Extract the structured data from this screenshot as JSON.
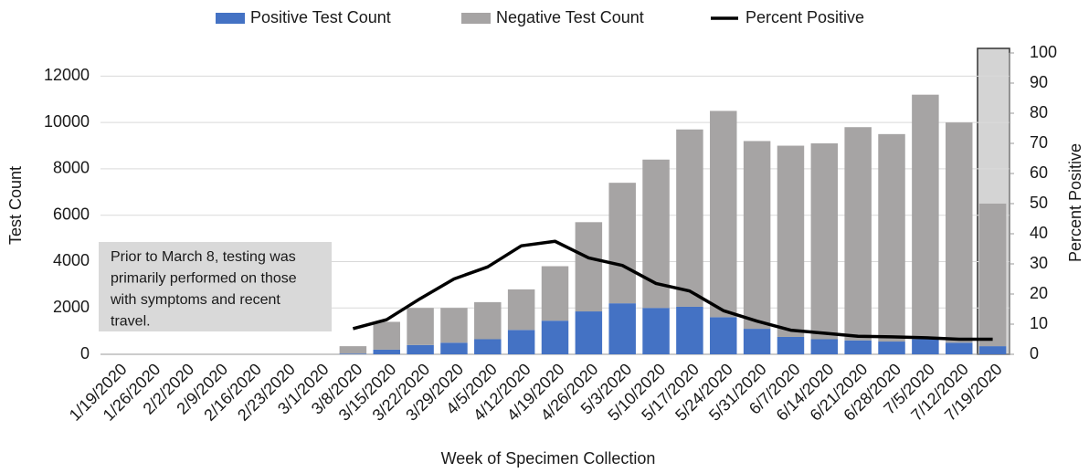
{
  "chart_data": {
    "type": "bar",
    "stacked": true,
    "x_label": "Week of Specimen Collection",
    "y_label": "Test Count",
    "y2_label": "Percent Positive",
    "categories": [
      "1/19/2020",
      "1/26/2020",
      "2/2/2020",
      "2/9/2020",
      "2/16/2020",
      "2/23/2020",
      "3/1/2020",
      "3/8/2020",
      "3/15/2020",
      "3/22/2020",
      "3/29/2020",
      "4/5/2020",
      "4/12/2020",
      "4/19/2020",
      "4/26/2020",
      "5/3/2020",
      "5/10/2020",
      "5/17/2020",
      "5/24/2020",
      "5/31/2020",
      "6/7/2020",
      "6/14/2020",
      "6/21/2020",
      "6/28/2020",
      "7/5/2020",
      "7/12/2020",
      "7/19/2020"
    ],
    "series": [
      {
        "name": "Positive Test Count",
        "color": "#4472c4",
        "values": [
          0,
          0,
          0,
          0,
          0,
          0,
          0,
          30,
          200,
          400,
          500,
          650,
          1050,
          1450,
          1850,
          2200,
          2000,
          2050,
          1600,
          1100,
          750,
          650,
          600,
          550,
          650,
          500,
          350
        ]
      },
      {
        "name": "Negative Test Count",
        "color": "#a6a4a4",
        "values": [
          0,
          0,
          0,
          0,
          0,
          0,
          0,
          320,
          1200,
          1600,
          1500,
          1600,
          1750,
          2350,
          3850,
          5200,
          6400,
          7650,
          8900,
          8100,
          8250,
          8450,
          9200,
          8950,
          10550,
          9500,
          6150
        ]
      },
      {
        "name": "Percent Positive",
        "color": "#000000",
        "type": "line",
        "axis": "y2",
        "values": [
          null,
          null,
          null,
          null,
          null,
          null,
          null,
          8.5,
          11.5,
          18.5,
          25,
          29,
          36,
          37.5,
          32,
          29.5,
          23.5,
          21,
          14.5,
          11,
          8,
          7,
          6,
          5.8,
          5.5,
          5,
          5
        ]
      }
    ],
    "ylim": [
      0,
      13000
    ],
    "yticks": [
      0,
      2000,
      4000,
      6000,
      8000,
      10000,
      12000
    ],
    "y2lim": [
      0,
      100
    ],
    "y2ticks": [
      0,
      10,
      20,
      30,
      40,
      50,
      60,
      70,
      80,
      90,
      100
    ],
    "grid": true,
    "legend": "top",
    "annotation": [
      "Prior to March 8, testing was",
      "primarily performed on those",
      "with symptoms and recent",
      "travel."
    ]
  }
}
